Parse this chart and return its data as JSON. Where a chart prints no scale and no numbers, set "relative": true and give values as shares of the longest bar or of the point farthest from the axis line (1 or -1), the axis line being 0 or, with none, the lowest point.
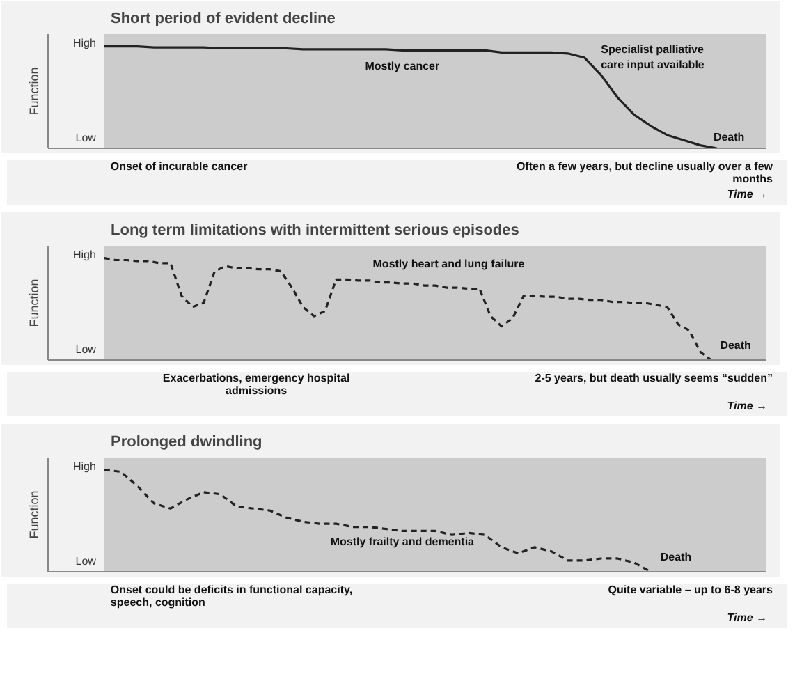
{
  "chart_data": [
    {
      "type": "line",
      "relative": true,
      "title": "Short period of evident decline",
      "ylabel": "Function",
      "xlabel": "Time →",
      "line_style": "solid",
      "categories": [
        null,
        null,
        null,
        null,
        null,
        null,
        null,
        null,
        null,
        null,
        null,
        null,
        null,
        null,
        null,
        null,
        null,
        null,
        null,
        null,
        null,
        null,
        null,
        null,
        null,
        null,
        null,
        null,
        null,
        null,
        null,
        null,
        null,
        null,
        null,
        null,
        null,
        null,
        null,
        null,
        null
      ],
      "series": [
        {
          "color": "#222222",
          "values": [
            1,
            1,
            1,
            0.99,
            0.99,
            0.99,
            0.99,
            0.98,
            0.98,
            0.98,
            0.98,
            0.98,
            0.97,
            0.97,
            0.97,
            0.97,
            0.97,
            0.97,
            0.96,
            0.96,
            0.96,
            0.96,
            0.96,
            0.96,
            0.94,
            0.94,
            0.94,
            0.94,
            0.93,
            0.89,
            0.72,
            0.5,
            0.33,
            0.22,
            0.13,
            0.08,
            0.03,
            0,
            null,
            null,
            null
          ]
        }
      ],
      "annotations": [
        "High",
        "Low",
        "Mostly cancer",
        "Specialist palliative care input available",
        "Death",
        "Onset of incurable cancer",
        "Often a few years, but decline usually over a few months"
      ]
    },
    {
      "type": "line",
      "relative": true,
      "title": "Long term limitations with intermittent serious episodes",
      "ylabel": "Function",
      "xlabel": "Time →",
      "line_style": "dashed",
      "categories": [
        null,
        null,
        null,
        null,
        null,
        null,
        null,
        null,
        null,
        null,
        null,
        null,
        null,
        null,
        null,
        null,
        null,
        null,
        null,
        null,
        null,
        null,
        null,
        null,
        null,
        null,
        null,
        null,
        null,
        null,
        null,
        null,
        null,
        null,
        null,
        null,
        null,
        null,
        null,
        null,
        null,
        null,
        null,
        null,
        null,
        null,
        null,
        null,
        null,
        null,
        null,
        null,
        null,
        null,
        null,
        null,
        null,
        null,
        null,
        null,
        null
      ],
      "series": [
        {
          "color": "#222222",
          "values": [
            1,
            0.98,
            0.98,
            0.97,
            0.97,
            0.95,
            0.95,
            0.63,
            0.52,
            0.56,
            0.87,
            0.92,
            0.9,
            0.9,
            0.89,
            0.89,
            0.87,
            0.71,
            0.52,
            0.43,
            0.48,
            0.79,
            0.79,
            0.78,
            0.78,
            0.76,
            0.76,
            0.75,
            0.75,
            0.73,
            0.73,
            0.71,
            0.71,
            0.7,
            0.7,
            0.43,
            0.33,
            0.41,
            0.63,
            0.63,
            0.62,
            0.62,
            0.6,
            0.6,
            0.59,
            0.59,
            0.57,
            0.57,
            0.56,
            0.56,
            0.54,
            0.52,
            0.35,
            0.29,
            0.08,
            0,
            null,
            null,
            null,
            null,
            null
          ]
        }
      ],
      "annotations": [
        "High",
        "Low",
        "Mostly heart and lung failure",
        "Death",
        "Exacerbations, emergency hospital admissions",
        "2-5 years, but death usually seems “sudden”"
      ]
    },
    {
      "type": "line",
      "relative": true,
      "title": "Prolonged dwindling",
      "ylabel": "Function",
      "xlabel": "Time →",
      "line_style": "dashed",
      "categories": [
        null,
        null,
        null,
        null,
        null,
        null,
        null,
        null,
        null,
        null,
        null,
        null,
        null,
        null,
        null,
        null,
        null,
        null,
        null,
        null,
        null,
        null,
        null,
        null,
        null,
        null,
        null,
        null,
        null,
        null,
        null,
        null,
        null,
        null,
        null,
        null,
        null,
        null,
        null,
        null,
        null
      ],
      "series": [
        {
          "color": "#222222",
          "values": [
            1,
            0.98,
            0.84,
            0.67,
            0.62,
            0.71,
            0.78,
            0.76,
            0.64,
            0.62,
            0.6,
            0.53,
            0.49,
            0.47,
            0.47,
            0.44,
            0.44,
            0.42,
            0.4,
            0.4,
            0.4,
            0.36,
            0.38,
            0.36,
            0.24,
            0.18,
            0.24,
            0.2,
            0.11,
            0.11,
            0.13,
            0.13,
            0.09,
            0,
            null,
            null,
            null,
            null,
            null,
            null,
            null
          ]
        }
      ],
      "annotations": [
        "High",
        "Low",
        "Mostly frailty and dementia",
        "Death",
        "Onset could be deficits in functional capacity, speech, cognition",
        "Quite variable – up to 6-8 years"
      ]
    }
  ]
}
